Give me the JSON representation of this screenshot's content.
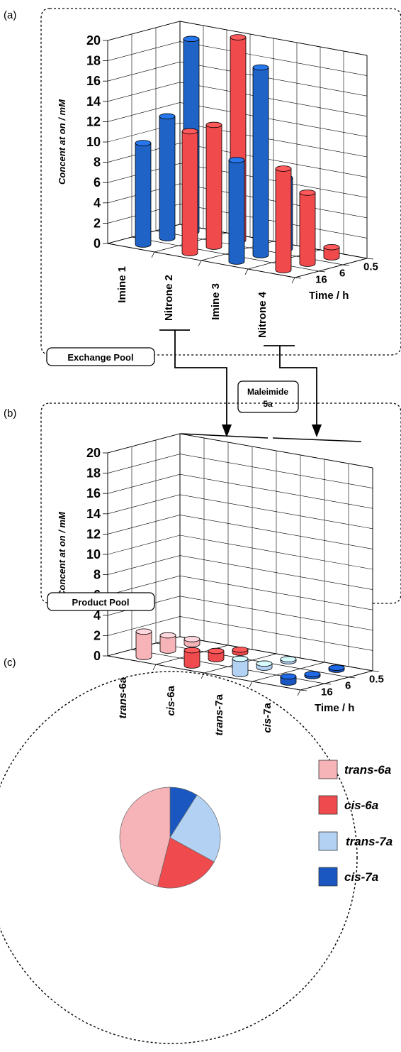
{
  "panel_labels": {
    "a": "(a)",
    "b": "(b)",
    "c": "(c)"
  },
  "pools": {
    "exchange": "Exchange Pool",
    "product": "Product Pool",
    "reagent_line1": "Maleimide",
    "reagent_line2": "5a"
  },
  "colors": {
    "imine": "#1f63c6",
    "nitrone": "#f04a4c",
    "trans6a": "#f6b3b8",
    "cis6a": "#ef4a4d",
    "trans7a": "#b3d2f3",
    "cis7a": "#1a57c0"
  },
  "chart_data": [
    {
      "type": "bar",
      "subtype": "3d-cylinder",
      "ylabel": "Concent at on / mM",
      "depth_label": "Time / h",
      "yticks": [
        "0",
        "2",
        "4",
        "6",
        "8",
        "10",
        "12",
        "14",
        "16",
        "18",
        "20"
      ],
      "ylim": [
        0,
        20
      ],
      "categories": [
        "Imine 1",
        "Nitrone 2",
        "Imine 3",
        "Nitrone 4"
      ],
      "time_labels": [
        "16",
        "6",
        "0.5"
      ],
      "series": [
        {
          "time": "16",
          "values": [
            10,
            12,
            10,
            10
          ]
        },
        {
          "time": "6",
          "values": [
            12,
            12,
            18.5,
            7
          ]
        },
        {
          "time": "0.5",
          "values": [
            19,
            20,
            7,
            1
          ]
        }
      ],
      "grid": true
    },
    {
      "type": "bar",
      "subtype": "3d-cylinder",
      "ylabel": "Concent at on / mM",
      "depth_label": "Time / h",
      "yticks": [
        "0",
        "2",
        "4",
        "6",
        "8",
        "10",
        "12",
        "14",
        "16",
        "18",
        "20"
      ],
      "ylim": [
        0,
        20
      ],
      "categories": [
        "trans-6a",
        "cis-6a",
        "trans-7a",
        "cis-7a"
      ],
      "time_labels": [
        "16",
        "6",
        "0.5"
      ],
      "series": [
        {
          "time": "16",
          "values": [
            2.5,
            1.5,
            1.5,
            0.6
          ]
        },
        {
          "time": "6",
          "values": [
            1.5,
            0.8,
            0.4,
            0.2
          ]
        },
        {
          "time": "0.5",
          "values": [
            0.5,
            0.3,
            0.2,
            0.2
          ]
        }
      ],
      "grid": true
    },
    {
      "type": "pie",
      "labels": [
        "trans-6a",
        "cis-6a",
        "trans-7a",
        "cis-7a"
      ],
      "legend_prefix": [
        "trans",
        "cis",
        "trans",
        "cis"
      ],
      "legend_suffix": [
        "-6a",
        "-6a",
        "-7a",
        "-7a"
      ],
      "values": [
        46,
        21,
        24,
        9
      ],
      "legend": "right"
    }
  ]
}
